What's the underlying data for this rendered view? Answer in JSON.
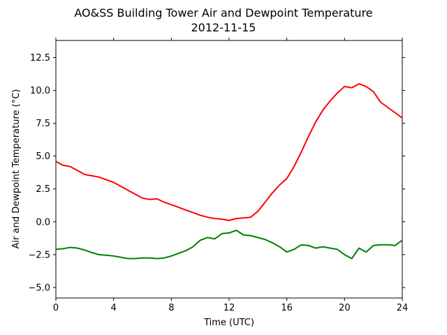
{
  "chart_data": {
    "type": "line",
    "title": "AO&SS Building Tower Air and Dewpoint Temperature",
    "subtitle": "2012-11-15",
    "xlabel": "Time (UTC)",
    "ylabel": "Air and Dewpoint Temperature (°C)",
    "xlim": [
      0,
      24
    ],
    "ylim": [
      -5.8,
      13.8
    ],
    "xticks": [
      0,
      4,
      8,
      12,
      16,
      20,
      24
    ],
    "yticks": [
      -5.0,
      -2.5,
      0.0,
      2.5,
      5.0,
      7.5,
      10.0,
      12.5
    ],
    "xtick_labels": [
      "0",
      "4",
      "8",
      "12",
      "16",
      "20",
      "24"
    ],
    "ytick_labels": [
      "−5.0",
      "−2.5",
      "0.0",
      "2.5",
      "5.0",
      "7.5",
      "10.0",
      "12.5"
    ],
    "grid": false,
    "series": [
      {
        "color": "#ff0000",
        "x": [
          0.0,
          0.5,
          1.0,
          1.5,
          2.0,
          2.5,
          3.0,
          3.5,
          4.0,
          4.5,
          5.0,
          5.5,
          6.0,
          6.5,
          7.0,
          7.5,
          8.0,
          8.5,
          9.0,
          9.5,
          10.0,
          10.5,
          11.0,
          11.5,
          12.0,
          12.5,
          13.0,
          13.5,
          14.0,
          14.5,
          15.0,
          15.5,
          16.0,
          16.5,
          17.0,
          17.5,
          18.0,
          18.5,
          19.0,
          19.5,
          20.0,
          20.5,
          21.0,
          21.5,
          22.0,
          22.5,
          23.0,
          23.5,
          24.0
        ],
        "values": [
          4.6,
          4.3,
          4.2,
          3.9,
          3.6,
          3.5,
          3.4,
          3.2,
          3.0,
          2.7,
          2.4,
          2.1,
          1.8,
          1.7,
          1.75,
          1.5,
          1.3,
          1.1,
          0.9,
          0.7,
          0.5,
          0.35,
          0.25,
          0.2,
          0.1,
          0.25,
          0.3,
          0.35,
          0.8,
          1.5,
          2.2,
          2.8,
          3.3,
          4.2,
          5.3,
          6.5,
          7.6,
          8.5,
          9.2,
          9.8,
          10.3,
          10.2,
          10.5,
          10.3,
          9.9,
          9.1,
          8.7,
          8.3,
          7.9
        ]
      },
      {
        "color": "#008000",
        "x": [
          0.0,
          0.5,
          1.0,
          1.5,
          2.0,
          2.5,
          3.0,
          3.5,
          4.0,
          4.5,
          5.0,
          5.5,
          6.0,
          6.5,
          7.0,
          7.5,
          8.0,
          8.5,
          9.0,
          9.5,
          10.0,
          10.5,
          11.0,
          11.5,
          12.0,
          12.5,
          13.0,
          13.5,
          14.0,
          14.5,
          15.0,
          15.5,
          16.0,
          16.5,
          17.0,
          17.5,
          18.0,
          18.5,
          19.0,
          19.5,
          20.0,
          20.5,
          21.0,
          21.5,
          22.0,
          22.5,
          23.0,
          23.5,
          24.0
        ],
        "values": [
          -2.1,
          -2.05,
          -1.95,
          -2.0,
          -2.15,
          -2.35,
          -2.5,
          -2.55,
          -2.6,
          -2.7,
          -2.8,
          -2.8,
          -2.75,
          -2.75,
          -2.8,
          -2.75,
          -2.6,
          -2.4,
          -2.2,
          -1.9,
          -1.4,
          -1.2,
          -1.3,
          -0.9,
          -0.85,
          -0.65,
          -1.0,
          -1.05,
          -1.2,
          -1.35,
          -1.6,
          -1.9,
          -2.3,
          -2.1,
          -1.75,
          -1.8,
          -2.0,
          -1.9,
          -2.0,
          -2.1,
          -2.5,
          -2.8,
          -2.0,
          -2.3,
          -1.8,
          -1.75,
          -1.75,
          -1.8,
          -1.4
        ]
      }
    ]
  }
}
